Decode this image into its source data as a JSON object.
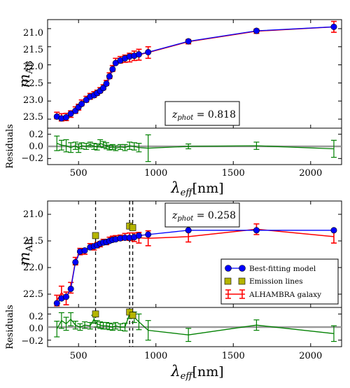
{
  "chart_data": [
    {
      "type": "line",
      "annotation": {
        "prefix": "z",
        "sub": "phot",
        "value": " = 0.818"
      },
      "ylabel": {
        "main": "m",
        "sub": "AB"
      },
      "ylim": [
        23.75,
        20.75
      ],
      "xlim": [
        300,
        2200
      ],
      "yticks": [
        "21.0",
        "21.5",
        "22.0",
        "22.5",
        "23.0",
        "23.5"
      ],
      "series": [
        {
          "role": "model",
          "color": "#0000ff",
          "x": [
            360,
            390,
            420,
            450,
            480,
            500,
            520,
            550,
            575,
            600,
            620,
            640,
            660,
            680,
            700,
            720,
            740,
            770,
            800,
            830,
            860,
            890,
            950,
            1210,
            1650,
            2150
          ],
          "y": [
            23.43,
            23.48,
            23.45,
            23.35,
            23.27,
            23.17,
            23.08,
            22.97,
            22.88,
            22.84,
            22.78,
            22.72,
            22.64,
            22.52,
            22.32,
            22.12,
            21.95,
            21.88,
            21.82,
            21.77,
            21.75,
            21.71,
            21.65,
            21.35,
            21.06,
            20.95
          ]
        },
        {
          "role": "galaxy",
          "color": "#ff0000",
          "x": [
            360,
            390,
            420,
            450,
            480,
            500,
            520,
            550,
            575,
            600,
            620,
            640,
            660,
            680,
            700,
            720,
            740,
            770,
            800,
            830,
            860,
            890,
            950,
            1210,
            1650,
            2150
          ],
          "y": [
            23.4,
            23.45,
            23.44,
            23.36,
            23.25,
            23.17,
            23.05,
            22.95,
            22.87,
            22.82,
            22.77,
            22.7,
            22.62,
            22.5,
            22.3,
            22.1,
            21.9,
            21.86,
            21.83,
            21.8,
            21.75,
            21.72,
            21.66,
            21.36,
            21.07,
            20.95
          ],
          "err": [
            0.09,
            0.1,
            0.1,
            0.09,
            0.09,
            0.08,
            0.08,
            0.08,
            0.08,
            0.08,
            0.07,
            0.07,
            0.07,
            0.07,
            0.08,
            0.08,
            0.08,
            0.09,
            0.1,
            0.12,
            0.13,
            0.15,
            0.16,
            0.06,
            0.06,
            0.15
          ]
        }
      ],
      "emission_lines": [],
      "residuals": {
        "ylabel": "Residuals",
        "yticks": [
          "0.2",
          "0.0",
          "−0.2"
        ],
        "ylim": [
          -0.3,
          0.3
        ],
        "x": [
          360,
          390,
          420,
          450,
          480,
          500,
          520,
          550,
          575,
          600,
          620,
          640,
          660,
          680,
          700,
          720,
          740,
          770,
          800,
          830,
          860,
          890,
          950,
          1210,
          1650,
          2150
        ],
        "y": [
          0.05,
          0.02,
          0.01,
          -0.02,
          0.01,
          -0.03,
          0.01,
          0.0,
          0.03,
          0.0,
          -0.01,
          0.05,
          0.03,
          0.01,
          -0.02,
          -0.01,
          -0.03,
          -0.01,
          -0.02,
          0.01,
          0.0,
          -0.02,
          -0.03,
          0.0,
          0.01,
          -0.04
        ],
        "err": [
          0.12,
          0.08,
          0.1,
          0.08,
          0.06,
          0.07,
          0.05,
          0.05,
          0.04,
          0.05,
          0.05,
          0.06,
          0.05,
          0.05,
          0.04,
          0.04,
          0.04,
          0.04,
          0.05,
          0.06,
          0.06,
          0.07,
          0.22,
          0.04,
          0.06,
          0.14
        ]
      },
      "xticks": [
        "500",
        "1000",
        "1500",
        "2000"
      ],
      "xlabel": {
        "main": "λ",
        "sub": "eff",
        "unit": "[nm]"
      }
    },
    {
      "type": "line",
      "annotation": {
        "prefix": "z",
        "sub": "phot",
        "value": " = 0.258"
      },
      "ylabel": {
        "main": "m",
        "sub": "AB"
      },
      "ylim": [
        22.75,
        20.75
      ],
      "xlim": [
        300,
        2200
      ],
      "yticks": [
        "21.0",
        "21.5",
        "22.0",
        "22.5"
      ],
      "series": [
        {
          "role": "model",
          "color": "#0000ff",
          "x": [
            360,
            390,
            420,
            450,
            480,
            510,
            540,
            575,
            600,
            620,
            640,
            660,
            680,
            700,
            720,
            740,
            770,
            800,
            830,
            860,
            890,
            950,
            1210,
            1650,
            2150
          ],
          "y": [
            22.67,
            22.58,
            22.55,
            22.4,
            21.9,
            21.7,
            21.68,
            21.62,
            21.6,
            21.58,
            21.55,
            21.53,
            21.52,
            21.5,
            21.48,
            21.47,
            21.45,
            21.44,
            21.44,
            21.43,
            21.4,
            21.38,
            21.3,
            21.3,
            21.3
          ]
        },
        {
          "role": "galaxy",
          "color": "#ff0000",
          "x": [
            360,
            390,
            420,
            450,
            480,
            510,
            540,
            575,
            600,
            620,
            640,
            660,
            680,
            700,
            720,
            740,
            770,
            800,
            830,
            860,
            890,
            950,
            1210,
            1650,
            2150
          ],
          "y": [
            22.62,
            22.47,
            22.58,
            22.38,
            21.88,
            21.7,
            21.7,
            21.6,
            21.62,
            21.58,
            21.56,
            21.52,
            21.52,
            21.48,
            21.46,
            21.45,
            21.44,
            21.42,
            21.42,
            21.43,
            21.44,
            21.45,
            21.42,
            21.28,
            21.42
          ],
          "err": [
            0.1,
            0.12,
            0.12,
            0.1,
            0.07,
            0.06,
            0.05,
            0.05,
            0.05,
            0.05,
            0.05,
            0.05,
            0.05,
            0.05,
            0.05,
            0.05,
            0.05,
            0.06,
            0.07,
            0.08,
            0.1,
            0.14,
            0.1,
            0.1,
            0.12
          ]
        }
      ],
      "emission_lines": [
        {
          "x": 610,
          "y": 21.4
        },
        {
          "x": 830,
          "y": 21.22
        },
        {
          "x": 850,
          "y": 21.25
        }
      ],
      "line_markers_x": [
        610,
        830,
        850
      ],
      "legend": {
        "placement": "lower-right",
        "items": [
          {
            "kind": "model",
            "label": "Best-fitting model"
          },
          {
            "kind": "emission",
            "label": "Emission lines"
          },
          {
            "kind": "galaxy",
            "label": "ALHAMBRA galaxy"
          }
        ]
      },
      "residuals": {
        "ylabel": "Residuals",
        "yticks": [
          "0.2",
          "0.0",
          "−0.2"
        ],
        "ylim": [
          -0.3,
          0.3
        ],
        "x": [
          360,
          390,
          420,
          450,
          480,
          510,
          540,
          575,
          600,
          620,
          640,
          660,
          680,
          700,
          720,
          740,
          770,
          800,
          830,
          860,
          890,
          950,
          1210,
          1650,
          2150
        ],
        "y": [
          -0.03,
          0.1,
          0.05,
          0.12,
          0.03,
          0.0,
          0.03,
          0.02,
          0.12,
          0.05,
          0.03,
          0.02,
          0.02,
          0.01,
          0.0,
          0.02,
          0.0,
          0.0,
          0.2,
          0.15,
          0.08,
          -0.05,
          -0.12,
          0.03,
          -0.1
        ],
        "err": [
          0.12,
          0.12,
          0.1,
          0.1,
          0.06,
          0.05,
          0.05,
          0.05,
          0.06,
          0.05,
          0.05,
          0.05,
          0.05,
          0.05,
          0.05,
          0.05,
          0.05,
          0.06,
          0.07,
          0.08,
          0.12,
          0.15,
          0.1,
          0.08,
          0.12
        ]
      },
      "emission_residuals": [
        {
          "x": 610,
          "y": 0.2
        },
        {
          "x": 830,
          "y": 0.23
        },
        {
          "x": 850,
          "y": 0.18
        }
      ],
      "xticks": [
        "500",
        "1000",
        "1500",
        "2000"
      ],
      "xlabel": {
        "main": "λ",
        "sub": "eff",
        "unit": "[nm]"
      }
    }
  ],
  "colors": {
    "model": "#0000ff",
    "galaxy": "#ff0000",
    "emission": "#b5b500",
    "residual": "#008000",
    "zero_line": "#999999"
  }
}
